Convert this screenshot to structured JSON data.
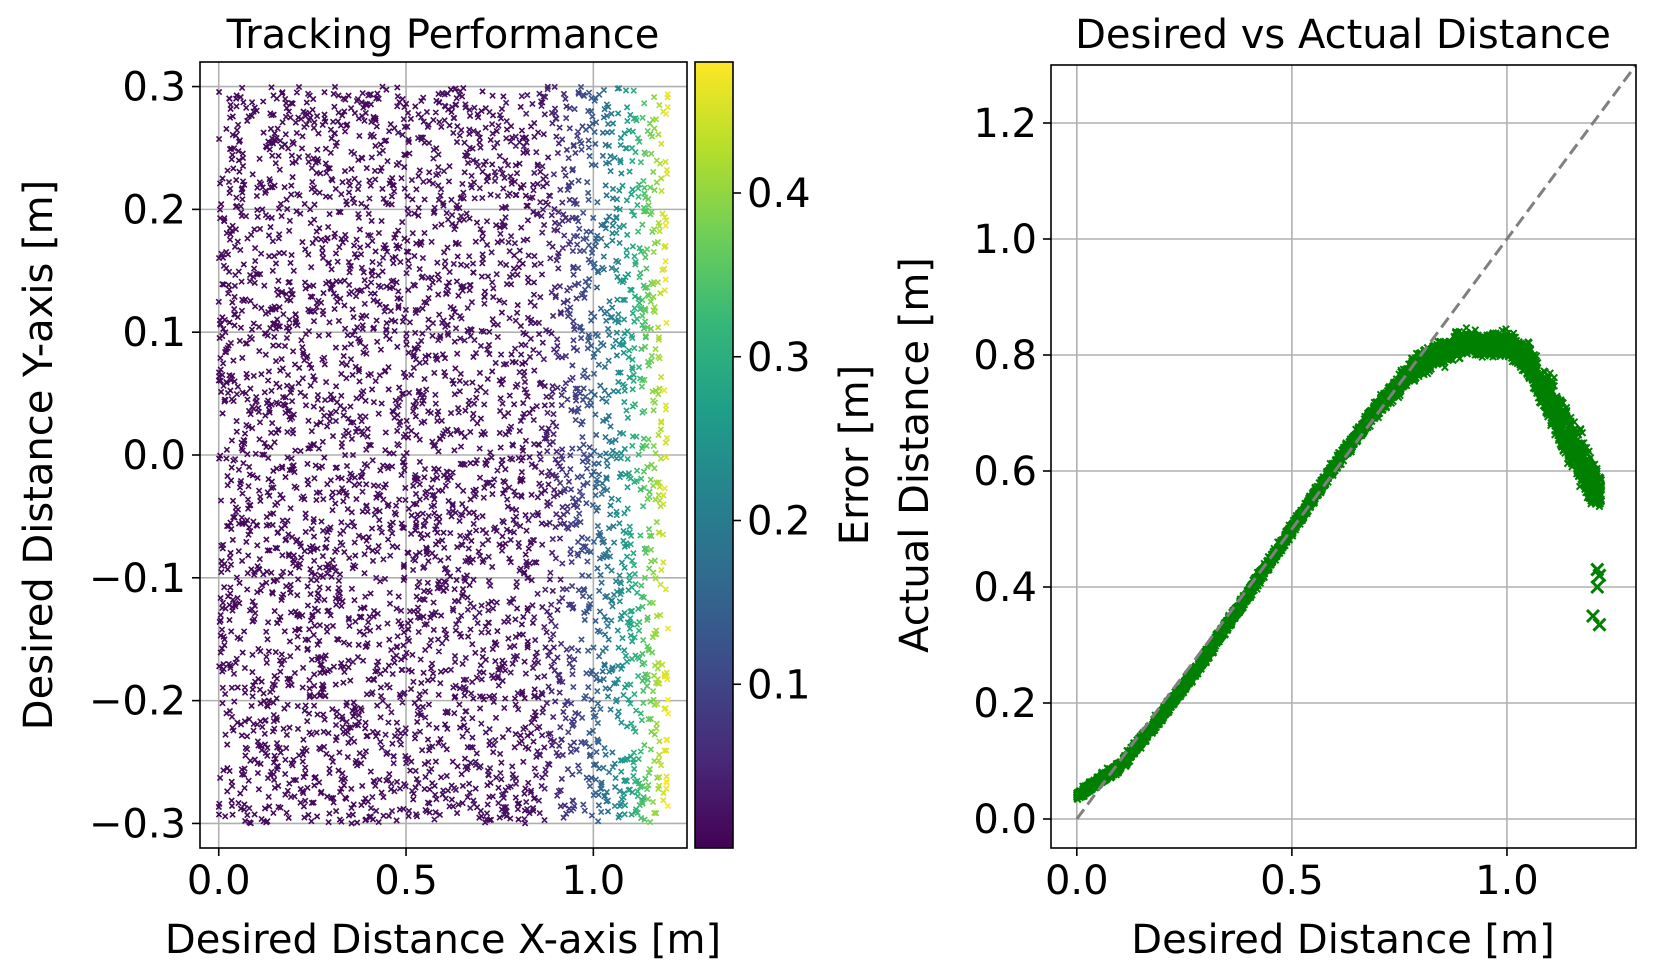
{
  "chart_data": [
    {
      "type": "scatter",
      "title": "Tracking Performance",
      "xlabel": "Desired Distance X-axis [m]",
      "ylabel": "Desired Distance Y-axis [m]",
      "xlim": [
        -0.05,
        1.25
      ],
      "ylim": [
        -0.32,
        0.32
      ],
      "xticks": [
        0.0,
        0.5,
        1.0
      ],
      "xtick_labels": [
        "0.0",
        "0.5",
        "1.0"
      ],
      "yticks": [
        -0.3,
        -0.2,
        -0.1,
        0.0,
        0.1,
        0.2,
        0.3
      ],
      "ytick_labels": [
        "−0.3",
        "−0.2",
        "−0.1",
        "0.0",
        "0.1",
        "0.2",
        "0.3"
      ],
      "grid": true,
      "marker": "x",
      "x_range": [
        0.0,
        1.2
      ],
      "y_range": [
        -0.3,
        0.3
      ],
      "error_model": "error grows with x: near 0 for x < 0.8, about 0.47 at x = 1.2",
      "colorbar": {
        "label": "Error [m]",
        "colormap": "viridis",
        "range": [
          0.0,
          0.48
        ],
        "ticks": [
          0.1,
          0.2,
          0.3,
          0.4
        ],
        "tick_labels": [
          "0.1",
          "0.2",
          "0.3",
          "0.4"
        ],
        "colors": [
          "#440154",
          "#482878",
          "#3e4989",
          "#31688e",
          "#26828e",
          "#1f9e89",
          "#35b779",
          "#6ece58",
          "#b5de2b",
          "#fde725"
        ]
      }
    },
    {
      "type": "scatter",
      "title": "Desired vs Actual Distance",
      "xlabel": "Desired Distance [m]",
      "ylabel": "Actual Distance [m]",
      "xlim": [
        -0.06,
        1.3
      ],
      "ylim": [
        -0.05,
        1.3
      ],
      "xticks": [
        0.0,
        0.5,
        1.0
      ],
      "xtick_labels": [
        "0.0",
        "0.5",
        "1.0"
      ],
      "yticks": [
        0.0,
        0.2,
        0.4,
        0.6,
        0.8,
        1.0,
        1.2
      ],
      "ytick_labels": [
        "0.0",
        "0.2",
        "0.4",
        "0.6",
        "0.8",
        "1.0",
        "1.2"
      ],
      "grid": true,
      "marker": "x",
      "color": "#008000",
      "reference_line": {
        "style": "dashed",
        "color": "#808080",
        "from": [
          0.0,
          0.0
        ],
        "to": [
          1.3,
          1.3
        ]
      },
      "curve": {
        "x": [
          0.0,
          0.1,
          0.2,
          0.3,
          0.4,
          0.5,
          0.6,
          0.7,
          0.8,
          0.9,
          1.0,
          1.05,
          1.1,
          1.15,
          1.2,
          1.22
        ],
        "y": [
          0.04,
          0.09,
          0.18,
          0.28,
          0.39,
          0.5,
          0.61,
          0.71,
          0.79,
          0.82,
          0.82,
          0.79,
          0.72,
          0.65,
          0.58,
          0.56
        ],
        "band_half_width": [
          0.01,
          0.015,
          0.015,
          0.015,
          0.015,
          0.015,
          0.015,
          0.02,
          0.03,
          0.03,
          0.03,
          0.04,
          0.06,
          0.07,
          0.06,
          0.04
        ]
      },
      "outliers": [
        {
          "x": 1.21,
          "y": 0.43
        },
        {
          "x": 1.215,
          "y": 0.42
        },
        {
          "x": 1.21,
          "y": 0.4
        },
        {
          "x": 1.2,
          "y": 0.35
        },
        {
          "x": 1.215,
          "y": 0.335
        }
      ]
    }
  ]
}
